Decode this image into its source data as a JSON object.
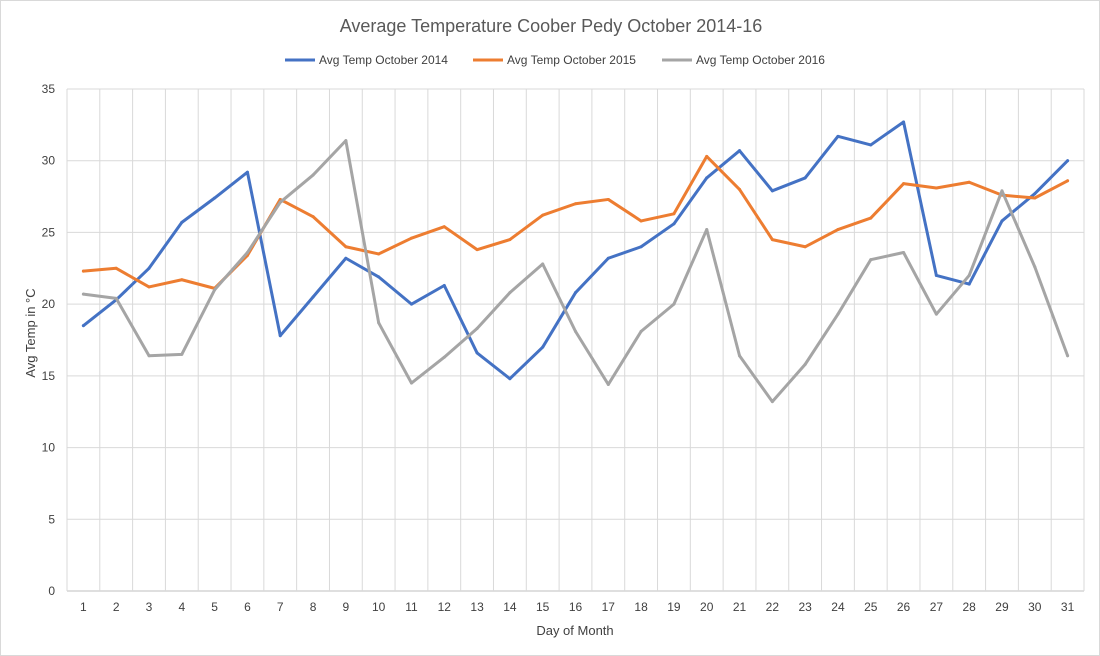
{
  "chart_data": {
    "type": "line",
    "title": "Average Temperature Coober Pedy October 2014-16",
    "xlabel": "Day of Month",
    "ylabel": "Avg Temp in °C",
    "ylim": [
      0,
      35
    ],
    "yticks": [
      0,
      5,
      10,
      15,
      20,
      25,
      30,
      35
    ],
    "grid": true,
    "legend_position": "top",
    "categories": [
      "1",
      "2",
      "3",
      "4",
      "5",
      "6",
      "7",
      "8",
      "9",
      "10",
      "11",
      "12",
      "13",
      "14",
      "15",
      "16",
      "17",
      "18",
      "19",
      "20",
      "21",
      "22",
      "23",
      "24",
      "25",
      "26",
      "27",
      "28",
      "29",
      "30",
      "31"
    ],
    "series": [
      {
        "name": "Avg Temp October 2014",
        "color": "#4472c4",
        "values": [
          18.5,
          20.3,
          22.5,
          25.7,
          27.4,
          29.2,
          17.8,
          20.5,
          23.2,
          21.9,
          20.0,
          21.3,
          16.6,
          14.8,
          17.0,
          20.8,
          23.2,
          24.0,
          25.6,
          28.8,
          30.7,
          27.9,
          28.8,
          31.7,
          31.1,
          32.7,
          22.0,
          21.4,
          25.8,
          27.7,
          30.0
        ]
      },
      {
        "name": "Avg Temp October 2015",
        "color": "#ed7d31",
        "values": [
          22.3,
          22.5,
          21.2,
          21.7,
          21.1,
          23.4,
          27.3,
          26.1,
          24.0,
          23.5,
          24.6,
          25.4,
          23.8,
          24.5,
          26.2,
          27.0,
          27.3,
          25.8,
          26.3,
          30.3,
          28.0,
          24.5,
          24.0,
          25.2,
          26.0,
          28.4,
          28.1,
          28.5,
          27.6,
          27.4,
          28.6
        ]
      },
      {
        "name": "Avg Temp October 2016",
        "color": "#a5a5a5",
        "values": [
          20.7,
          20.4,
          16.4,
          16.5,
          21.0,
          23.6,
          27.1,
          29.0,
          31.4,
          18.7,
          14.5,
          16.3,
          18.3,
          20.8,
          22.8,
          18.1,
          14.4,
          18.1,
          20.0,
          25.2,
          16.4,
          13.2,
          15.8,
          19.3,
          23.1,
          23.6,
          19.3,
          22.0,
          27.9,
          22.6,
          16.4
        ]
      }
    ]
  }
}
